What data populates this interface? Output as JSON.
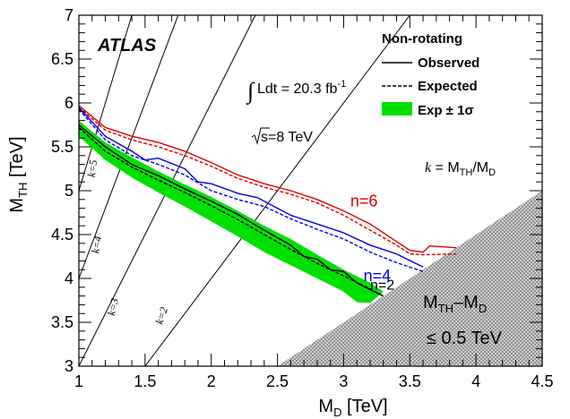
{
  "chart_data": {
    "type": "line",
    "title": "",
    "xlabel": "M",
    "xlabel_sub": "D",
    "xlabel_unit": " [TeV]",
    "ylabel": "M",
    "ylabel_sub": "TH",
    "ylabel_unit": " [TeV]",
    "xlim": [
      1,
      4.5
    ],
    "ylim": [
      3,
      7
    ],
    "x_ticks": [
      "1",
      "1.5",
      "2",
      "2.5",
      "3",
      "3.5",
      "4",
      "4.5"
    ],
    "y_ticks": [
      "3",
      "3.5",
      "4",
      "4.5",
      "5",
      "5.5",
      "6",
      "6.5",
      "7"
    ],
    "grid": false,
    "experiment": "ATLAS",
    "luminosity_label": "Ldt = 20.3 fb",
    "luminosity_sup": "-1",
    "energy_label": "s=8 TeV",
    "legend": {
      "position": "top-right",
      "header": "Non-rotating",
      "entries": [
        {
          "label": "Observed",
          "style": "solid"
        },
        {
          "label": "Expected",
          "style": "dashed"
        },
        {
          "label": "Exp ± 1σ",
          "style": "band"
        }
      ]
    },
    "k_def": {
      "k": "k",
      "eq": " = M",
      "sub1": "TH",
      "slash": "/M",
      "sub2": "D"
    },
    "k_lines": [
      {
        "label": "k=5",
        "k": 5
      },
      {
        "label": "k=4",
        "k": 4
      },
      {
        "label": "k=3",
        "k": 3
      },
      {
        "label": "k=2",
        "k": 2
      }
    ],
    "excluded_region": {
      "label_line1_main": "M",
      "label_line1_sub1": "TH",
      "label_line1_mid": "–M",
      "label_line1_sub2": "D",
      "label_line2": "≤ 0.5 TeV"
    },
    "series": [
      {
        "name": "n=6",
        "color": "#e00000",
        "observed": [
          [
            1.0,
            5.97
          ],
          [
            1.2,
            5.72
          ],
          [
            1.4,
            5.62
          ],
          [
            1.6,
            5.55
          ],
          [
            1.8,
            5.45
          ],
          [
            2.0,
            5.32
          ],
          [
            2.2,
            5.18
          ],
          [
            2.4,
            5.08
          ],
          [
            2.6,
            5.0
          ],
          [
            2.8,
            4.9
          ],
          [
            3.0,
            4.77
          ],
          [
            3.2,
            4.62
          ],
          [
            3.4,
            4.42
          ],
          [
            3.5,
            4.32
          ],
          [
            3.6,
            4.3
          ],
          [
            3.65,
            4.37
          ],
          [
            3.85,
            4.35
          ]
        ],
        "expected": [
          [
            1.0,
            5.95
          ],
          [
            1.2,
            5.69
          ],
          [
            1.4,
            5.58
          ],
          [
            1.6,
            5.5
          ],
          [
            1.8,
            5.4
          ],
          [
            2.0,
            5.28
          ],
          [
            2.2,
            5.14
          ],
          [
            2.4,
            5.04
          ],
          [
            2.6,
            4.96
          ],
          [
            2.8,
            4.86
          ],
          [
            3.0,
            4.72
          ],
          [
            3.2,
            4.55
          ],
          [
            3.4,
            4.38
          ],
          [
            3.5,
            4.28
          ],
          [
            3.6,
            4.27
          ],
          [
            3.85,
            4.28
          ]
        ]
      },
      {
        "name": "n=4",
        "color": "#0000dd",
        "observed": [
          [
            1.0,
            5.95
          ],
          [
            1.2,
            5.62
          ],
          [
            1.4,
            5.45
          ],
          [
            1.5,
            5.35
          ],
          [
            1.6,
            5.37
          ],
          [
            1.8,
            5.25
          ],
          [
            1.9,
            5.1
          ],
          [
            2.0,
            5.08
          ],
          [
            2.2,
            4.97
          ],
          [
            2.35,
            4.92
          ],
          [
            2.5,
            4.8
          ],
          [
            2.6,
            4.72
          ],
          [
            2.8,
            4.62
          ],
          [
            3.0,
            4.52
          ],
          [
            3.2,
            4.38
          ],
          [
            3.4,
            4.28
          ],
          [
            3.6,
            4.13
          ]
        ],
        "expected": [
          [
            1.0,
            5.93
          ],
          [
            1.2,
            5.58
          ],
          [
            1.4,
            5.4
          ],
          [
            1.6,
            5.3
          ],
          [
            1.8,
            5.18
          ],
          [
            2.0,
            5.0
          ],
          [
            2.2,
            4.9
          ],
          [
            2.4,
            4.82
          ],
          [
            2.6,
            4.68
          ],
          [
            2.8,
            4.56
          ],
          [
            3.0,
            4.45
          ],
          [
            3.2,
            4.3
          ],
          [
            3.4,
            4.18
          ],
          [
            3.6,
            4.08
          ]
        ]
      },
      {
        "name": "n=2",
        "color": "#000000",
        "observed": [
          [
            1.0,
            5.75
          ],
          [
            1.2,
            5.5
          ],
          [
            1.4,
            5.3
          ],
          [
            1.6,
            5.17
          ],
          [
            1.8,
            5.02
          ],
          [
            2.0,
            4.88
          ],
          [
            2.2,
            4.73
          ],
          [
            2.4,
            4.55
          ],
          [
            2.6,
            4.38
          ],
          [
            2.7,
            4.25
          ],
          [
            2.8,
            4.22
          ],
          [
            2.9,
            4.1
          ],
          [
            3.0,
            4.08
          ],
          [
            3.1,
            3.95
          ],
          [
            3.2,
            3.87
          ],
          [
            3.3,
            3.8
          ]
        ],
        "expected": [
          [
            1.0,
            5.72
          ],
          [
            1.2,
            5.45
          ],
          [
            1.4,
            5.27
          ],
          [
            1.6,
            5.12
          ],
          [
            1.8,
            4.98
          ],
          [
            2.0,
            4.83
          ],
          [
            2.2,
            4.67
          ],
          [
            2.4,
            4.5
          ],
          [
            2.6,
            4.33
          ],
          [
            2.8,
            4.17
          ],
          [
            3.0,
            4.03
          ],
          [
            3.2,
            3.88
          ],
          [
            3.3,
            3.8
          ]
        ],
        "band_upper": [
          [
            1.0,
            5.8
          ],
          [
            1.2,
            5.55
          ],
          [
            1.4,
            5.38
          ],
          [
            1.6,
            5.22
          ],
          [
            1.8,
            5.07
          ],
          [
            2.0,
            4.93
          ],
          [
            2.2,
            4.77
          ],
          [
            2.4,
            4.6
          ],
          [
            2.6,
            4.45
          ],
          [
            2.8,
            4.27
          ],
          [
            3.0,
            4.1
          ],
          [
            3.2,
            3.95
          ],
          [
            3.3,
            3.85
          ]
        ],
        "band_lower": [
          [
            1.0,
            5.62
          ],
          [
            1.2,
            5.35
          ],
          [
            1.4,
            5.15
          ],
          [
            1.6,
            4.98
          ],
          [
            1.8,
            4.82
          ],
          [
            2.0,
            4.65
          ],
          [
            2.2,
            4.48
          ],
          [
            2.4,
            4.3
          ],
          [
            2.6,
            4.15
          ],
          [
            2.8,
            4.0
          ],
          [
            3.0,
            3.85
          ],
          [
            3.1,
            3.73
          ],
          [
            3.2,
            3.72
          ]
        ]
      }
    ]
  }
}
